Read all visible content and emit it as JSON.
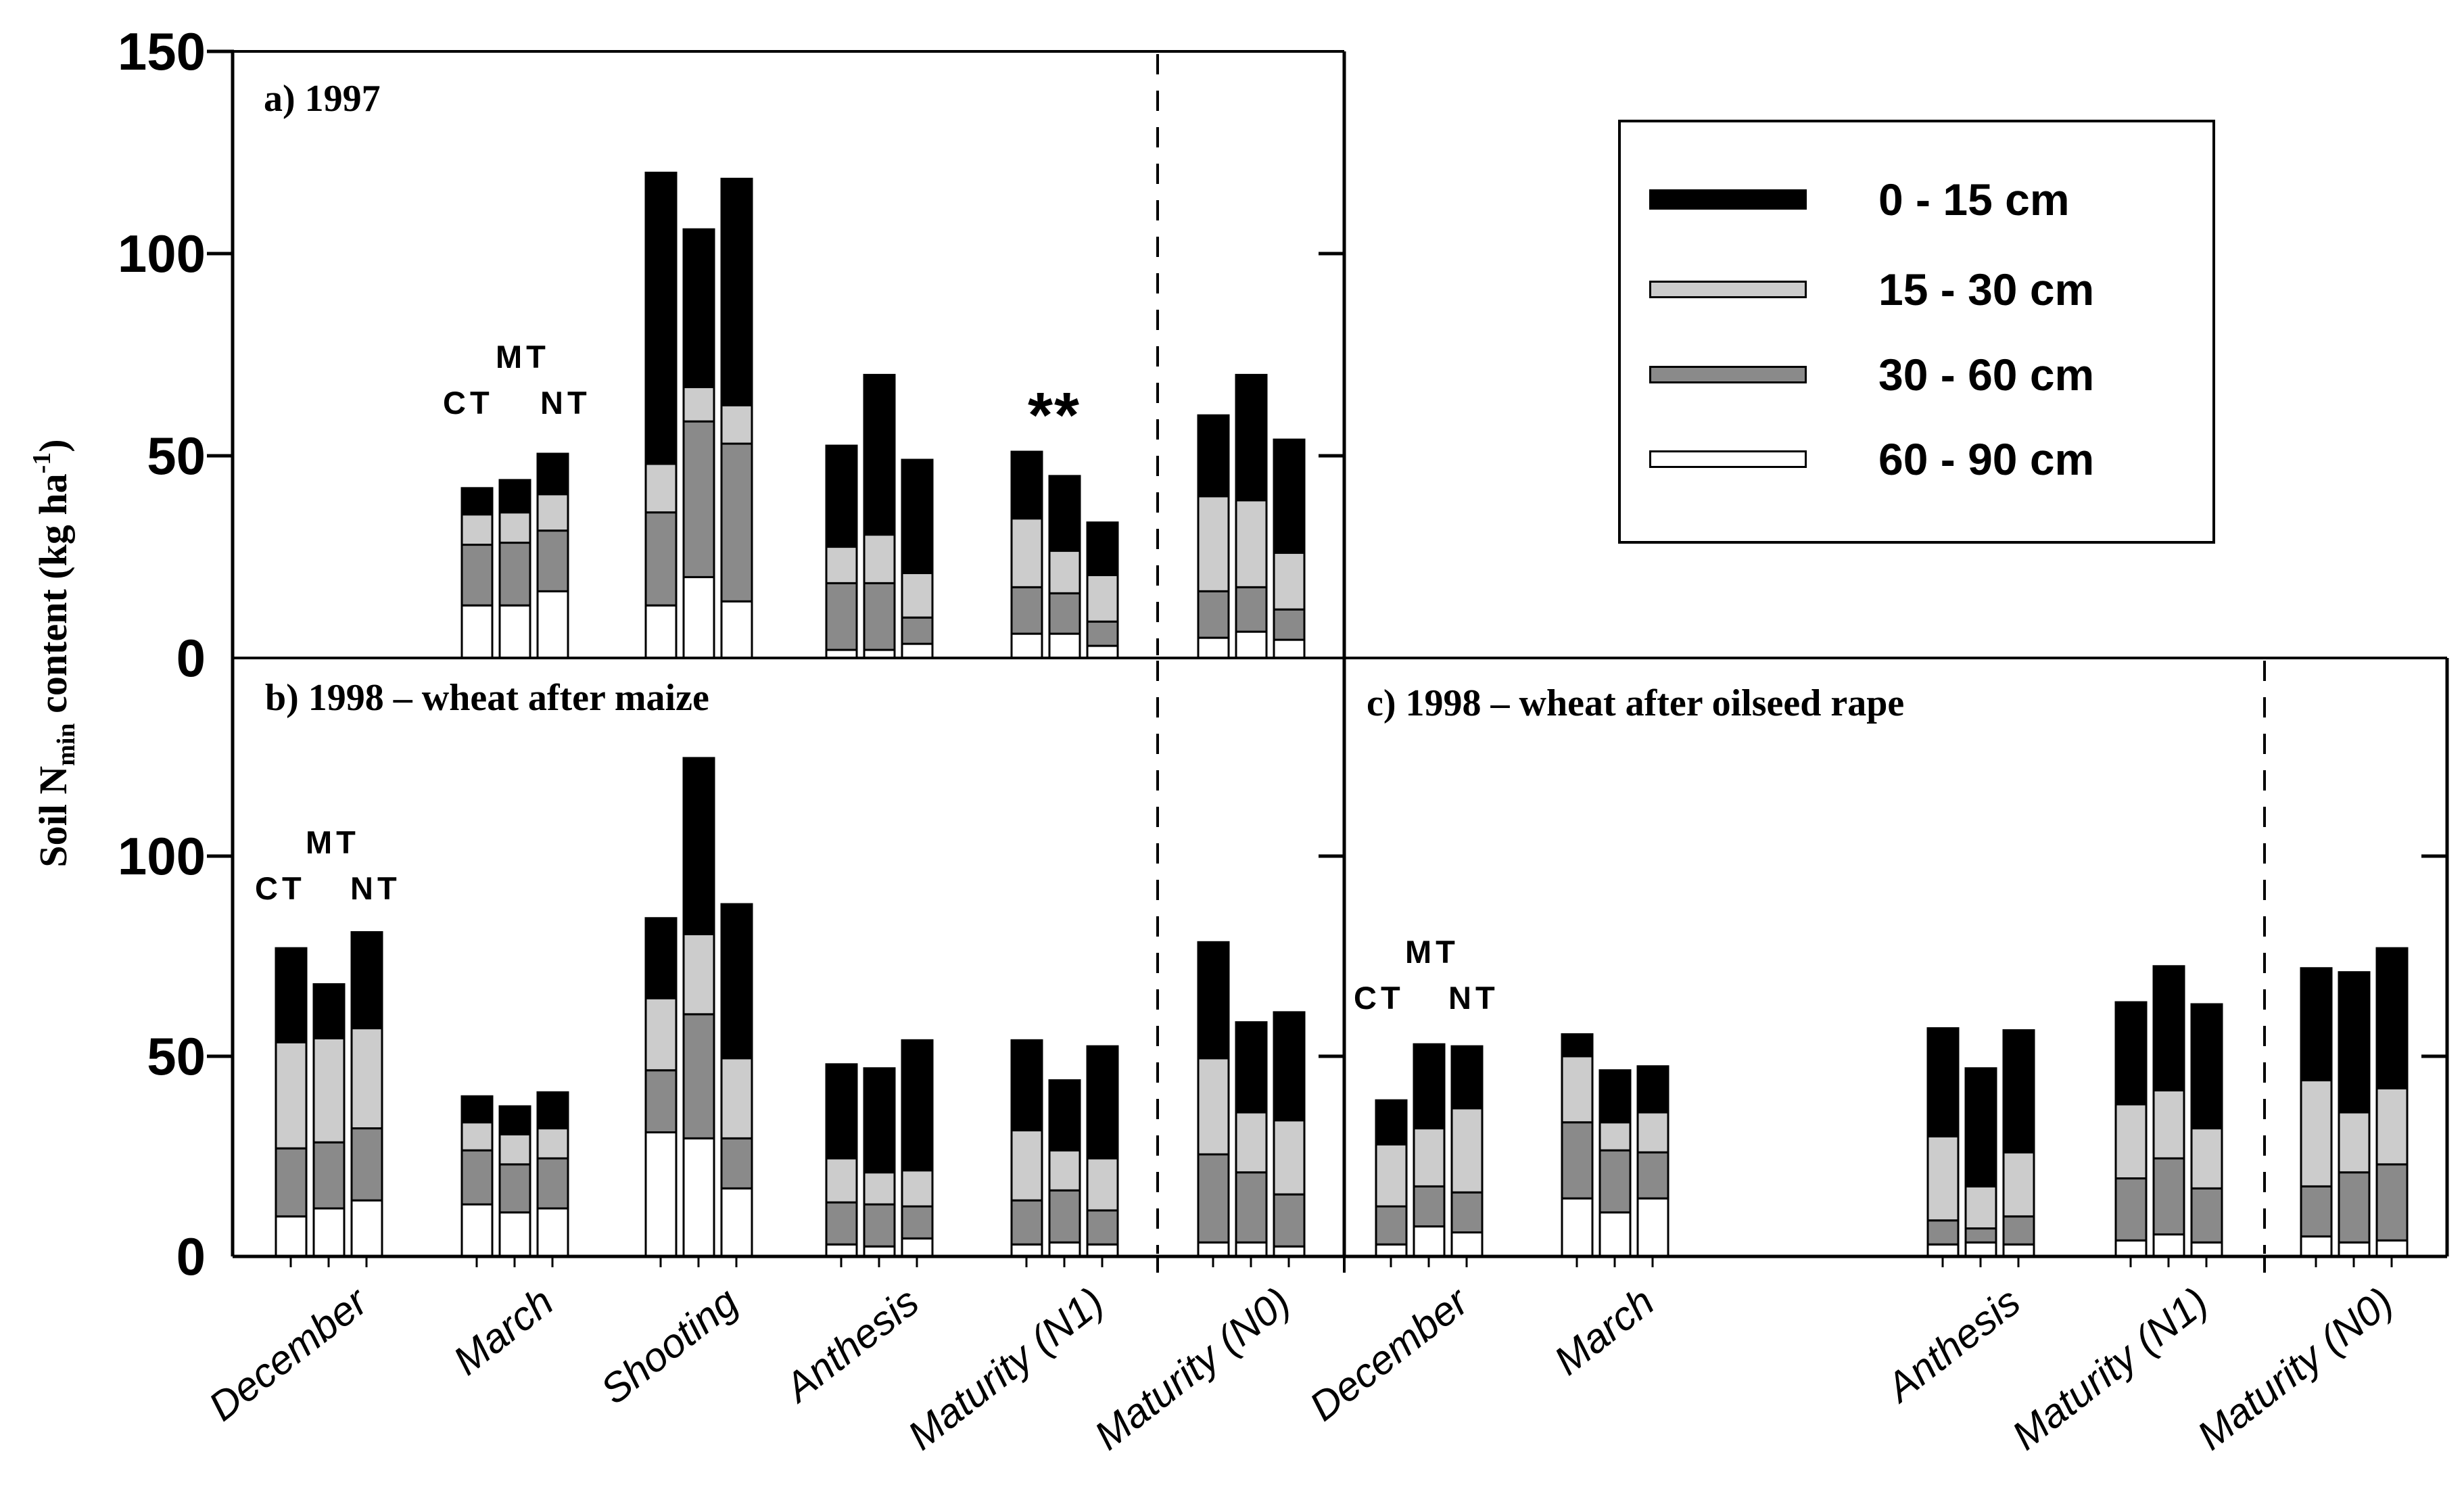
{
  "y_axis": {
    "title": {
      "pre": "Soil N",
      "sub": "min",
      "mid": " content (kg ha",
      "sup": "-1",
      "post": ")"
    }
  },
  "tillage_labels": [
    "CT",
    "MT",
    "NT"
  ],
  "x_axis": {
    "labels": [
      "December",
      "March",
      "Shooting",
      "Anthesis",
      "Maturity (N1)",
      "Maturity (N0)",
      "December",
      "March",
      "Anthesis",
      "Maturity (N1)",
      "Maturity (N0)"
    ]
  },
  "legend": {
    "items": [
      {
        "label": "0 - 15 cm",
        "color": "#000000"
      },
      {
        "label": "15 - 30 cm",
        "color": "#cccccc"
      },
      {
        "label": "30 - 60 cm",
        "color": "#8a8a8a"
      },
      {
        "label": "60 - 90 cm",
        "color": "#ffffff"
      }
    ]
  },
  "chart_data": [
    {
      "type": "bar",
      "stacked": true,
      "title": "a) 1997",
      "annotation": "**",
      "annotation_over": "Maturity (N1)",
      "ylim": [
        0,
        150
      ],
      "yticks": [
        {
          "value": 150,
          "label": "150"
        },
        {
          "value": 100,
          "label": "100"
        },
        {
          "value": 50,
          "label": "50"
        },
        {
          "value": 0,
          "label": "0"
        }
      ],
      "series_bottom_to_top": [
        "60 - 90 cm",
        "30 - 60 cm",
        "15 - 30 cm",
        "0 - 15 cm"
      ],
      "bar_order": [
        "CT",
        "MT",
        "NT"
      ],
      "categories": [
        "March",
        "Shooting",
        "Anthesis",
        "Maturity (N1)",
        "Maturity (N0)"
      ],
      "values": [
        [
          [
            13,
            15,
            7.5,
            6.5
          ],
          [
            13,
            15.5,
            7.5,
            8
          ],
          [
            16.5,
            15,
            9,
            10
          ]
        ],
        [
          [
            13,
            23,
            12,
            72
          ],
          [
            20,
            38.5,
            8.5,
            39
          ],
          [
            14,
            39,
            9.5,
            56
          ]
        ],
        [
          [
            2,
            16.5,
            9,
            25
          ],
          [
            2,
            16.5,
            12,
            39.5
          ],
          [
            3.5,
            6.5,
            11,
            28
          ]
        ],
        [
          [
            6,
            11.5,
            17,
            16.5
          ],
          [
            6,
            10,
            10.5,
            18.5
          ],
          [
            3,
            6,
            11.5,
            13
          ]
        ],
        [
          [
            5,
            11.5,
            23.5,
            20
          ],
          [
            6.5,
            11,
            21.5,
            31
          ],
          [
            4.5,
            7.5,
            14,
            28
          ]
        ]
      ]
    },
    {
      "type": "bar",
      "stacked": true,
      "title": "b) 1998 – wheat after maize",
      "ylim": [
        0,
        150
      ],
      "yticks": [
        {
          "value": 100,
          "label": "100"
        },
        {
          "value": 50,
          "label": "50"
        },
        {
          "value": 0,
          "label": "0"
        }
      ],
      "series_bottom_to_top": [
        "60 - 90 cm",
        "30 - 60 cm",
        "15 - 30 cm",
        "0 - 15 cm"
      ],
      "bar_order": [
        "CT",
        "MT",
        "NT"
      ],
      "categories": [
        "December",
        "March",
        "Shooting",
        "Anthesis",
        "Maturity (N1)",
        "Maturity (N0)"
      ],
      "values": [
        [
          [
            10,
            17,
            26.5,
            23.5
          ],
          [
            12,
            16.5,
            26,
            13.5
          ],
          [
            14,
            18,
            25,
            24
          ]
        ],
        [
          [
            13,
            13.5,
            7,
            6.5
          ],
          [
            11,
            12,
            7.5,
            7
          ],
          [
            12,
            12.5,
            7.5,
            9
          ]
        ],
        [
          [
            31,
            15.5,
            18,
            20
          ],
          [
            29.5,
            31,
            20,
            44
          ],
          [
            17,
            12.5,
            20,
            38.5
          ]
        ],
        [
          [
            3,
            10.5,
            11,
            23.5
          ],
          [
            2.5,
            10.5,
            8,
            26
          ],
          [
            4.5,
            8,
            9,
            32.5
          ]
        ],
        [
          [
            3,
            11,
            17.5,
            22.5
          ],
          [
            3.5,
            13,
            10,
            17.5
          ],
          [
            3,
            8.5,
            13,
            28
          ]
        ],
        [
          [
            3.5,
            22,
            24,
            29
          ],
          [
            3.5,
            17.5,
            15,
            22.5
          ],
          [
            2.5,
            13,
            18.5,
            27
          ]
        ]
      ]
    },
    {
      "type": "bar",
      "stacked": true,
      "title": "c) 1998 – wheat after oilseed rape",
      "ylim": [
        0,
        150
      ],
      "yticks": [
        {
          "value": 100,
          "label": "100"
        },
        {
          "value": 50,
          "label": "50"
        },
        {
          "value": 0,
          "label": "0"
        }
      ],
      "series_bottom_to_top": [
        "60 - 90 cm",
        "30 - 60 cm",
        "15 - 30 cm",
        "0 - 15 cm"
      ],
      "bar_order": [
        "CT",
        "MT",
        "NT"
      ],
      "categories": [
        "December",
        "March",
        "Anthesis",
        "Maturity (N1)",
        "Maturity (N0)"
      ],
      "values": [
        [
          [
            3,
            9.5,
            15.5,
            11
          ],
          [
            7.5,
            10,
            14.5,
            21
          ],
          [
            6,
            10,
            21,
            15.5
          ]
        ],
        [
          [
            14.5,
            19,
            16.5,
            5.5
          ],
          [
            11,
            15.5,
            7,
            13
          ],
          [
            14.5,
            11.5,
            10,
            11.5
          ]
        ],
        [
          [
            3,
            6,
            21,
            27
          ],
          [
            3.5,
            3.5,
            10.5,
            29.5
          ],
          [
            3,
            7,
            16,
            30.5
          ]
        ],
        [
          [
            4,
            15.5,
            18.5,
            25.5
          ],
          [
            5.5,
            19,
            17,
            31
          ],
          [
            3.5,
            13.5,
            15,
            31
          ]
        ],
        [
          [
            5,
            12.5,
            26.5,
            28
          ],
          [
            3.5,
            17.5,
            15,
            35
          ],
          [
            4,
            19,
            19,
            35
          ]
        ]
      ]
    }
  ]
}
